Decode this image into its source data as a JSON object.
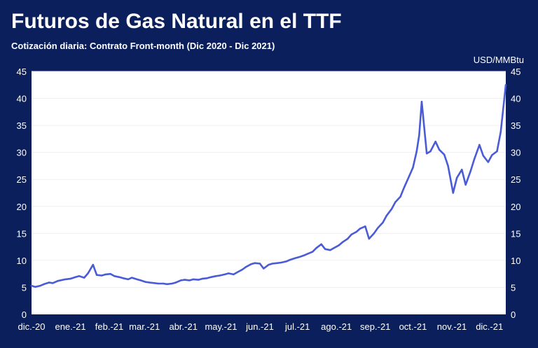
{
  "header": {
    "title": "Futuros de Gas Natural en el TTF",
    "subtitle": "Cotización diaria: Contrato Front-month (Dic 2020 - Dic 2021)"
  },
  "colors": {
    "background": "#0b1f5c",
    "plot": "#ffffff",
    "series": "#4a5bd6",
    "grid": "#f0f0f0"
  },
  "chart_data": {
    "type": "line",
    "title": "Futuros de Gas Natural en el TTF",
    "subtitle": "Cotización diaria: Contrato Front-month (Dic 2020 - Dic 2021)",
    "unit": "USD/MMBtu",
    "xlabel": "",
    "ylabel": "",
    "ylim": [
      0,
      45
    ],
    "yticks": [
      0,
      5,
      10,
      15,
      20,
      25,
      30,
      35,
      40,
      45
    ],
    "y_axis_both_sides": true,
    "grid": "horizontal",
    "legend": "none",
    "x_tick_labels": [
      "dic.-20",
      "ene.-21",
      "feb.-21",
      "mar.-21",
      "abr.-21",
      "may.-21",
      "jun.-21",
      "jul.-21",
      "ago.-21",
      "sep.-21",
      "oct.-21",
      "nov.-21",
      "dic.-21"
    ],
    "x_range": [
      "2020-12-01",
      "2021-12-14"
    ],
    "x": [
      "2020-12-01",
      "2020-12-04",
      "2020-12-08",
      "2020-12-11",
      "2020-12-15",
      "2020-12-18",
      "2020-12-22",
      "2020-12-28",
      "2021-01-01",
      "2021-01-05",
      "2021-01-08",
      "2021-01-12",
      "2021-01-15",
      "2021-01-19",
      "2021-01-22",
      "2021-01-26",
      "2021-01-29",
      "2021-02-02",
      "2021-02-05",
      "2021-02-09",
      "2021-02-12",
      "2021-02-16",
      "2021-02-19",
      "2021-02-23",
      "2021-02-26",
      "2021-03-02",
      "2021-03-05",
      "2021-03-09",
      "2021-03-12",
      "2021-03-16",
      "2021-03-19",
      "2021-03-23",
      "2021-03-26",
      "2021-03-30",
      "2021-04-02",
      "2021-04-06",
      "2021-04-09",
      "2021-04-13",
      "2021-04-16",
      "2021-04-20",
      "2021-04-23",
      "2021-04-27",
      "2021-04-30",
      "2021-05-04",
      "2021-05-07",
      "2021-05-11",
      "2021-05-14",
      "2021-05-18",
      "2021-05-21",
      "2021-05-25",
      "2021-05-28",
      "2021-06-01",
      "2021-06-04",
      "2021-06-08",
      "2021-06-11",
      "2021-06-15",
      "2021-06-18",
      "2021-06-22",
      "2021-06-25",
      "2021-06-29",
      "2021-07-02",
      "2021-07-06",
      "2021-07-09",
      "2021-07-13",
      "2021-07-16",
      "2021-07-20",
      "2021-07-23",
      "2021-07-27",
      "2021-07-30",
      "2021-08-03",
      "2021-08-06",
      "2021-08-10",
      "2021-08-13",
      "2021-08-17",
      "2021-08-20",
      "2021-08-24",
      "2021-08-27",
      "2021-08-31",
      "2021-09-03",
      "2021-09-07",
      "2021-09-10",
      "2021-09-14",
      "2021-09-17",
      "2021-09-21",
      "2021-09-24",
      "2021-09-28",
      "2021-10-01",
      "2021-10-04",
      "2021-10-06",
      "2021-10-08",
      "2021-10-12",
      "2021-10-15",
      "2021-10-19",
      "2021-10-22",
      "2021-10-26",
      "2021-10-29",
      "2021-11-02",
      "2021-11-05",
      "2021-11-09",
      "2021-11-12",
      "2021-11-16",
      "2021-11-19",
      "2021-11-23",
      "2021-11-26",
      "2021-11-30",
      "2021-12-03",
      "2021-12-07",
      "2021-12-10",
      "2021-12-14"
    ],
    "series": [
      {
        "values": [
          5.3,
          5.1,
          5.3,
          5.6,
          5.9,
          5.8,
          6.2,
          6.5,
          6.6,
          6.9,
          7.1,
          6.8,
          7.6,
          9.2,
          7.3,
          7.2,
          7.4,
          7.5,
          7.1,
          6.9,
          6.7,
          6.5,
          6.8,
          6.5,
          6.3,
          6.0,
          5.9,
          5.8,
          5.7,
          5.7,
          5.6,
          5.7,
          5.9,
          6.3,
          6.4,
          6.3,
          6.5,
          6.4,
          6.6,
          6.7,
          6.9,
          7.1,
          7.2,
          7.4,
          7.6,
          7.4,
          7.8,
          8.3,
          8.8,
          9.3,
          9.5,
          9.4,
          8.5,
          9.2,
          9.4,
          9.5,
          9.6,
          9.8,
          10.1,
          10.4,
          10.6,
          10.9,
          11.2,
          11.6,
          12.3,
          13.0,
          12.1,
          11.9,
          12.3,
          12.8,
          13.4,
          14.0,
          14.8,
          15.3,
          15.9,
          16.3,
          14.0,
          15.0,
          16.0,
          17.0,
          18.3,
          19.5,
          20.8,
          21.8,
          23.5,
          25.6,
          27.2,
          30.2,
          33.2,
          39.4,
          29.8,
          30.2,
          32.0,
          30.5,
          29.6,
          27.5,
          22.5,
          25.3,
          26.8,
          24.0,
          26.6,
          28.8,
          31.4,
          29.4,
          28.2,
          29.5,
          30.2,
          33.8,
          42.5
        ]
      }
    ]
  }
}
